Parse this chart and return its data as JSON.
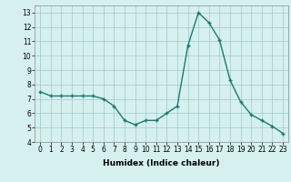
{
  "x": [
    0,
    1,
    2,
    3,
    4,
    5,
    6,
    7,
    8,
    9,
    10,
    11,
    12,
    13,
    14,
    15,
    16,
    17,
    18,
    19,
    20,
    21,
    22,
    23
  ],
  "y": [
    7.5,
    7.2,
    7.2,
    7.2,
    7.2,
    7.2,
    7.0,
    6.5,
    5.5,
    5.2,
    5.5,
    5.5,
    6.0,
    6.5,
    10.7,
    13.0,
    12.3,
    11.1,
    8.3,
    6.8,
    5.9,
    5.5,
    5.1,
    4.6
  ],
  "line_color": "#1a7a6e",
  "marker": "+",
  "marker_size": 3,
  "marker_linewidth": 1.0,
  "line_width": 1.0,
  "bg_color": "#d6f0ef",
  "grid_color": "#a0c8c8",
  "xlabel": "Humidex (Indice chaleur)",
  "xlim": [
    -0.5,
    23.5
  ],
  "ylim": [
    4,
    13.5
  ],
  "xticks": [
    0,
    1,
    2,
    3,
    4,
    5,
    6,
    7,
    8,
    9,
    10,
    11,
    12,
    13,
    14,
    15,
    16,
    17,
    18,
    19,
    20,
    21,
    22,
    23
  ],
  "yticks": [
    4,
    5,
    6,
    7,
    8,
    9,
    10,
    11,
    12,
    13
  ],
  "label_fontsize": 6.5,
  "tick_fontsize": 5.5
}
